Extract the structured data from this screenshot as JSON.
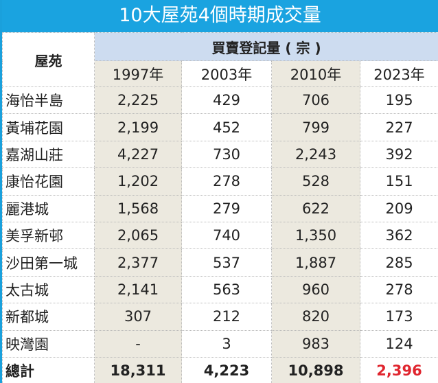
{
  "title": "10大屋苑4個時期成交量",
  "chart_data": {
    "type": "table",
    "title": "10大屋苑4個時期成交量",
    "row_header": "屋苑",
    "group_header": "買賣登記量 ( 宗 )",
    "columns": [
      "1997年",
      "2003年",
      "2010年",
      "2023年"
    ],
    "rows": [
      {
        "name": "海怡半島",
        "values": [
          "2,225",
          "429",
          "706",
          "195"
        ]
      },
      {
        "name": "黃埔花園",
        "values": [
          "2,199",
          "452",
          "799",
          "227"
        ]
      },
      {
        "name": "嘉湖山莊",
        "values": [
          "4,227",
          "730",
          "2,243",
          "392"
        ]
      },
      {
        "name": "康怡花園",
        "values": [
          "1,202",
          "278",
          "528",
          "151"
        ]
      },
      {
        "name": "麗港城",
        "values": [
          "1,568",
          "279",
          "622",
          "209"
        ]
      },
      {
        "name": "美孚新邨",
        "values": [
          "2,065",
          "740",
          "1,350",
          "362"
        ]
      },
      {
        "name": "沙田第一城",
        "values": [
          "2,377",
          "537",
          "1,887",
          "285"
        ]
      },
      {
        "name": "太古城",
        "values": [
          "2,141",
          "563",
          "960",
          "278"
        ]
      },
      {
        "name": "新都城",
        "values": [
          "307",
          "212",
          "820",
          "173"
        ]
      },
      {
        "name": "映灣園",
        "values": [
          "-",
          "3",
          "983",
          "124"
        ]
      }
    ],
    "total": {
      "name": "總計",
      "values": [
        "18,311",
        "4,223",
        "10,898",
        "2,396"
      ]
    },
    "colors": {
      "title_bg": "#1aa3e0",
      "header_bg": "#cddcf0",
      "alt_column_bg": "#ece9df",
      "highlight": "#e0262f"
    }
  }
}
